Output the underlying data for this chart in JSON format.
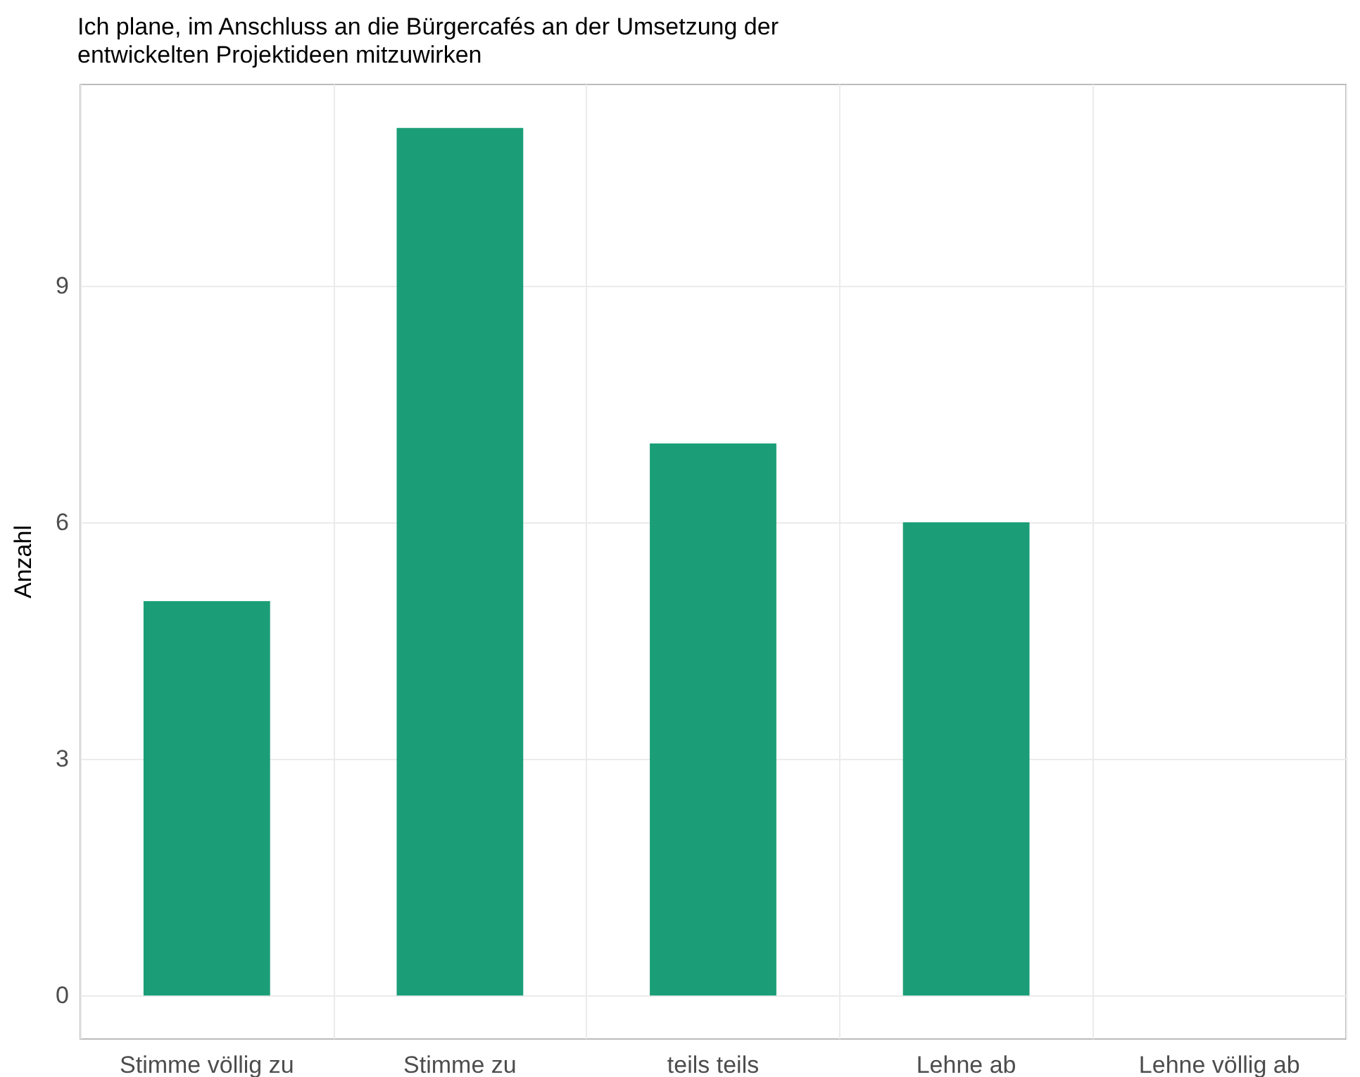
{
  "chart_data": {
    "type": "bar",
    "title": "Ich plane, im Anschluss an die Bürgercafés an der Umsetzung der entwickelten Projektideen mitzuwirken",
    "ylabel": "Anzahl",
    "categories": [
      "Stimme völlig zu",
      "Stimme zu",
      "teils teils",
      "Lehne ab",
      "Lehne völlig ab"
    ],
    "values": [
      5,
      11,
      7,
      6,
      0
    ],
    "color": "#1b9e77",
    "ylim": [
      -0.55,
      11.55
    ],
    "yticks": [
      0,
      3,
      6,
      9
    ],
    "grid": true
  }
}
